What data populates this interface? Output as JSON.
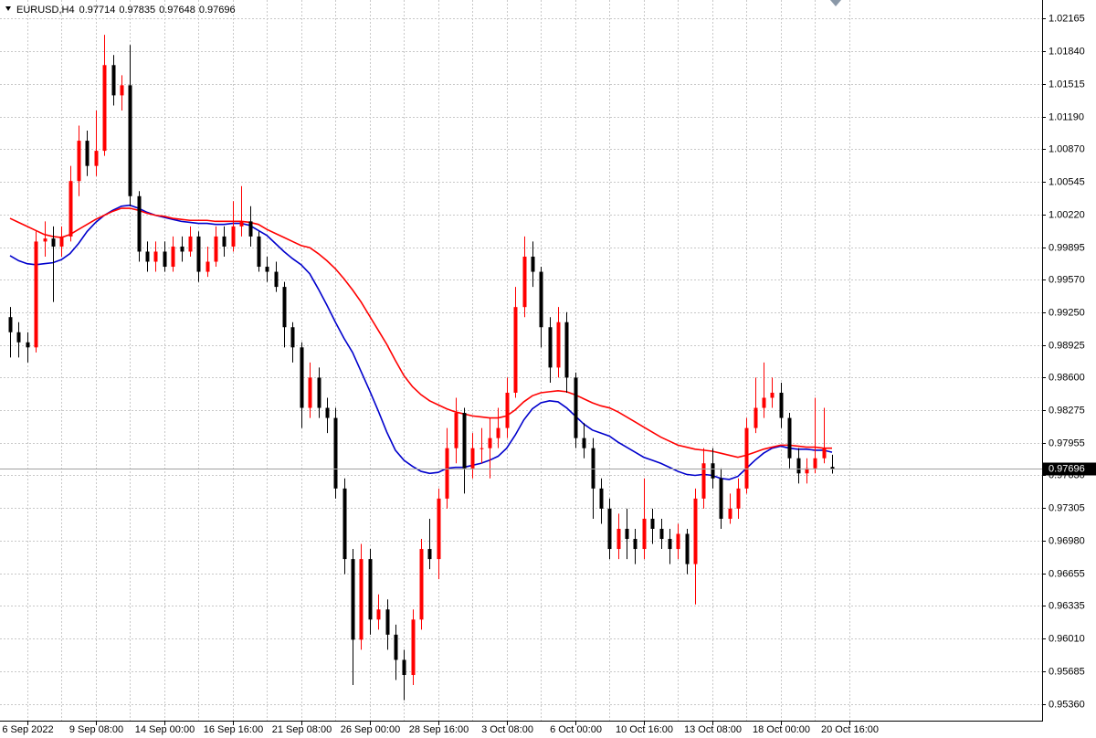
{
  "chart_data": {
    "type": "candlestick",
    "title": "EURUSD,H4",
    "up_color": "#ff0000",
    "down_color": "#000000",
    "grid": true,
    "ylim": [
      0.95188,
      1.02346
    ],
    "yticks": [
      1.02165,
      {
        "value": 1.0184,
        "label": "1.01840"
      },
      1.01515,
      {
        "value": 1.0119,
        "label": "1.01190"
      },
      {
        "value": 1.0087,
        "label": "1.00870"
      },
      1.00545,
      {
        "value": 1.0022,
        "label": "1.00220"
      },
      0.99895,
      {
        "value": 0.9957,
        "label": "0.99570"
      },
      {
        "value": 0.9925,
        "label": "0.99250"
      },
      0.98925,
      {
        "value": 0.986,
        "label": "0.98600"
      },
      0.98275,
      0.97955,
      {
        "value": 0.9763,
        "label": "0.97630"
      },
      0.97305,
      {
        "value": 0.9698,
        "label": "0.96980"
      },
      0.96655,
      0.96335,
      {
        "value": 0.9601,
        "label": "0.96010"
      },
      0.95685,
      {
        "value": 0.9536,
        "label": "0.95360"
      }
    ],
    "categories": [
      null,
      null,
      "6 Sep 2022",
      null,
      null,
      null,
      null,
      null,
      null,
      null,
      "9 Sep 08:00",
      null,
      null,
      null,
      null,
      null,
      null,
      null,
      "14 Sep 00:00",
      null,
      null,
      null,
      null,
      null,
      null,
      null,
      "16 Sep 16:00",
      null,
      null,
      null,
      null,
      null,
      null,
      null,
      "21 Sep 08:00",
      null,
      null,
      null,
      null,
      null,
      null,
      null,
      "26 Sep 00:00",
      null,
      null,
      null,
      null,
      null,
      null,
      null,
      "28 Sep 16:00",
      null,
      null,
      null,
      null,
      null,
      null,
      null,
      "3 Oct 08:00",
      null,
      null,
      null,
      null,
      null,
      null,
      null,
      "6 Oct 00:00",
      null,
      null,
      null,
      null,
      null,
      null,
      null,
      "10 Oct 16:00",
      null,
      null,
      null,
      null,
      null,
      null,
      null,
      "13 Oct 08:00",
      null,
      null,
      null,
      null,
      null,
      null,
      null,
      "18 Oct 00:00",
      null,
      null,
      null,
      null,
      null,
      null,
      null,
      "20 Oct 16:00"
    ],
    "open": [
      0.992,
      0.9905,
      0.9895,
      0.989,
      0.9995,
      0.9998,
      0.999,
      1.0,
      1.0055,
      1.0095,
      1.007,
      1.0085,
      1.017,
      1.014,
      1.015,
      1.004,
      0.9985,
      0.9975,
      0.9985,
      0.997,
      0.999,
      0.9985,
      1.0,
      0.9965,
      0.9975,
      1.0,
      0.999,
      1.001,
      1.0015,
      1.0,
      0.997,
      0.9965,
      0.995,
      0.991,
      0.989,
      0.983,
      0.986,
      0.983,
      0.982,
      0.975,
      0.968,
      0.96,
      0.968,
      0.962,
      0.963,
      0.9605,
      0.958,
      0.9565,
      0.962,
      0.969,
      0.968,
      0.974,
      0.979,
      0.9825,
      0.977,
      0.979,
      0.979,
      0.98,
      0.981,
      0.9845,
      0.993,
      0.998,
      0.9965,
      0.991,
      0.987,
      0.9915,
      0.986,
      0.98,
      0.979,
      0.975,
      0.973,
      0.969,
      0.971,
      0.97,
      0.969,
      0.972,
      0.971,
      0.97,
      0.969,
      0.9705,
      0.9675,
      0.974,
      0.9775,
      0.976,
      0.972,
      0.973,
      0.975,
      0.981,
      0.983,
      0.984,
      0.9845,
      0.982,
      0.978,
      0.9765,
      0.977,
      0.978,
      0.97714,
      null,
      null
    ],
    "high": [
      0.993,
      0.9915,
      0.9905,
      1.0005,
      1.0015,
      1.001,
      1.001,
      1.007,
      1.011,
      1.0105,
      1.0125,
      1.02,
      1.018,
      1.016,
      1.019,
      1.0045,
      0.9995,
      0.9995,
      0.9995,
      1.0,
      1.0,
      1.001,
      1.0005,
      0.999,
      1.001,
      1.001,
      1.0035,
      1.005,
      1.003,
      1.0005,
      0.998,
      0.9975,
      0.9955,
      0.9915,
      0.9895,
      0.9875,
      0.987,
      0.984,
      0.983,
      0.976,
      0.969,
      0.9695,
      0.969,
      0.9645,
      0.964,
      0.9615,
      0.959,
      0.963,
      0.97,
      0.972,
      0.975,
      0.981,
      0.984,
      0.983,
      0.9805,
      0.981,
      0.982,
      0.983,
      0.986,
      0.995,
      1.0,
      0.9995,
      0.997,
      0.992,
      0.993,
      0.9925,
      0.9865,
      0.9815,
      0.98,
      0.976,
      0.974,
      0.9725,
      0.973,
      0.971,
      0.976,
      0.973,
      0.972,
      0.971,
      0.9715,
      0.971,
      0.975,
      0.979,
      0.979,
      0.977,
      0.9745,
      0.976,
      0.982,
      0.986,
      0.9875,
      0.986,
      0.9855,
      0.9825,
      0.979,
      0.978,
      0.984,
      0.983,
      0.97835,
      null,
      null
    ],
    "low": [
      0.988,
      0.988,
      0.9875,
      0.9885,
      0.998,
      0.9935,
      0.998,
      0.9995,
      1.004,
      1.006,
      1.006,
      1.008,
      1.013,
      1.0125,
      1.003,
      0.9975,
      0.9965,
      0.9965,
      0.9965,
      0.9965,
      0.9975,
      0.998,
      0.9955,
      0.996,
      0.997,
      0.998,
      0.9985,
      1.0,
      0.999,
      0.9965,
      0.9955,
      0.9945,
      0.989,
      0.9875,
      0.981,
      0.982,
      0.982,
      0.9805,
      0.974,
      0.9665,
      0.9555,
      0.959,
      0.9605,
      0.961,
      0.959,
      0.956,
      0.954,
      0.9555,
      0.961,
      0.967,
      0.966,
      0.973,
      0.9775,
      0.9745,
      0.976,
      0.9775,
      0.976,
      0.979,
      0.98,
      0.984,
      0.992,
      0.995,
      0.989,
      0.9855,
      0.986,
      0.9845,
      0.979,
      0.978,
      0.972,
      0.9715,
      0.968,
      0.968,
      0.968,
      0.9675,
      0.968,
      0.9695,
      0.969,
      0.9675,
      0.968,
      0.9665,
      0.9635,
      0.973,
      0.975,
      0.971,
      0.9715,
      0.972,
      0.9745,
      0.9805,
      0.982,
      0.983,
      0.981,
      0.977,
      0.9755,
      0.9755,
      0.9765,
      0.9775,
      0.97648,
      null,
      null
    ],
    "close": [
      0.9905,
      0.9895,
      0.989,
      0.9995,
      0.9998,
      0.999,
      1.0,
      1.0055,
      1.0095,
      1.007,
      1.0085,
      1.017,
      1.014,
      1.015,
      1.004,
      0.9985,
      0.9975,
      0.9985,
      0.997,
      0.999,
      0.9985,
      1.0,
      0.9965,
      0.9975,
      1.0,
      0.999,
      1.001,
      1.0015,
      1.0,
      0.997,
      0.9965,
      0.995,
      0.991,
      0.989,
      0.983,
      0.986,
      0.983,
      0.982,
      0.975,
      0.968,
      0.96,
      0.968,
      0.962,
      0.963,
      0.9605,
      0.958,
      0.9565,
      0.962,
      0.969,
      0.968,
      0.974,
      0.979,
      0.9825,
      0.977,
      0.979,
      0.979,
      0.98,
      0.981,
      0.9845,
      0.993,
      0.998,
      0.9965,
      0.991,
      0.987,
      0.9915,
      0.986,
      0.98,
      0.979,
      0.975,
      0.973,
      0.969,
      0.971,
      0.97,
      0.969,
      0.972,
      0.971,
      0.97,
      0.969,
      0.9705,
      0.9675,
      0.974,
      0.9775,
      0.976,
      0.972,
      0.973,
      0.975,
      0.981,
      0.983,
      0.984,
      0.9845,
      0.982,
      0.978,
      0.9765,
      0.977,
      0.978,
      0.979,
      0.97696,
      null,
      null
    ],
    "indicators": [
      {
        "color": "#0000cc",
        "values": [
          0.9981,
          0.9976,
          0.9973,
          0.9972,
          0.9973,
          0.9974,
          0.9977,
          0.9983,
          0.9993,
          1.0005,
          1.0014,
          1.0021,
          1.0026,
          1.003,
          1.0031,
          1.0028,
          1.0024,
          1.0021,
          1.0019,
          1.0017,
          1.0015,
          1.0014,
          1.0013,
          1.0013,
          1.0012,
          1.0012,
          1.0013,
          1.0013,
          1.0011,
          1.0006,
          1.0001,
          0.9993,
          0.9985,
          0.9978,
          0.9972,
          0.9963,
          0.9948,
          0.9932,
          0.9915,
          0.9899,
          0.9885,
          0.9866,
          0.9847,
          0.9827,
          0.9806,
          0.9788,
          0.9778,
          0.9772,
          0.9767,
          0.9765,
          0.9766,
          0.977,
          0.9771,
          0.9771,
          0.9773,
          0.9775,
          0.9778,
          0.9782,
          0.979,
          0.9803,
          0.9818,
          0.9829,
          0.9835,
          0.9837,
          0.9836,
          0.983,
          0.9822,
          0.9814,
          0.9808,
          0.9805,
          0.9802,
          0.9796,
          0.9791,
          0.9786,
          0.9781,
          0.9778,
          0.9775,
          0.9771,
          0.9767,
          0.9764,
          0.9763,
          0.9764,
          0.9763,
          0.976,
          0.9759,
          0.9762,
          0.977,
          0.9778,
          0.9785,
          0.979,
          0.9792,
          0.979,
          0.9789,
          0.9789,
          0.9788,
          0.9788,
          0.9786,
          null,
          null
        ]
      },
      {
        "color": "#ff0000",
        "values": [
          1.0018,
          1.0014,
          1.001,
          1.0006,
          1.0002,
          1.0,
          0.9999,
          1.0002,
          1.0007,
          1.0012,
          1.0017,
          1.0021,
          1.0025,
          1.0028,
          1.0028,
          1.0026,
          1.0023,
          1.0021,
          1.002,
          1.0018,
          1.0017,
          1.0016,
          1.0016,
          1.0016,
          1.0015,
          1.0015,
          1.0015,
          1.0015,
          1.0014,
          1.0012,
          1.0007,
          1.0003,
          0.9999,
          0.9995,
          0.9991,
          0.9989,
          0.9983,
          0.9976,
          0.9968,
          0.9958,
          0.9947,
          0.9935,
          0.9921,
          0.9907,
          0.9893,
          0.9877,
          0.9862,
          0.9851,
          0.9843,
          0.9837,
          0.9833,
          0.9829,
          0.9826,
          0.9824,
          0.9822,
          0.9821,
          0.982,
          0.982,
          0.9822,
          0.9828,
          0.9836,
          0.9842,
          0.9845,
          0.9846,
          0.9847,
          0.9846,
          0.9843,
          0.9839,
          0.9835,
          0.9832,
          0.983,
          0.9826,
          0.9821,
          0.9816,
          0.9811,
          0.9806,
          0.9801,
          0.9797,
          0.9793,
          0.9791,
          0.9789,
          0.9788,
          0.9787,
          0.9785,
          0.9783,
          0.9781,
          0.9783,
          0.9786,
          0.9789,
          0.9791,
          0.9793,
          0.9793,
          0.9792,
          0.9791,
          0.9791,
          0.979,
          0.979,
          null,
          null
        ]
      }
    ]
  }
}
